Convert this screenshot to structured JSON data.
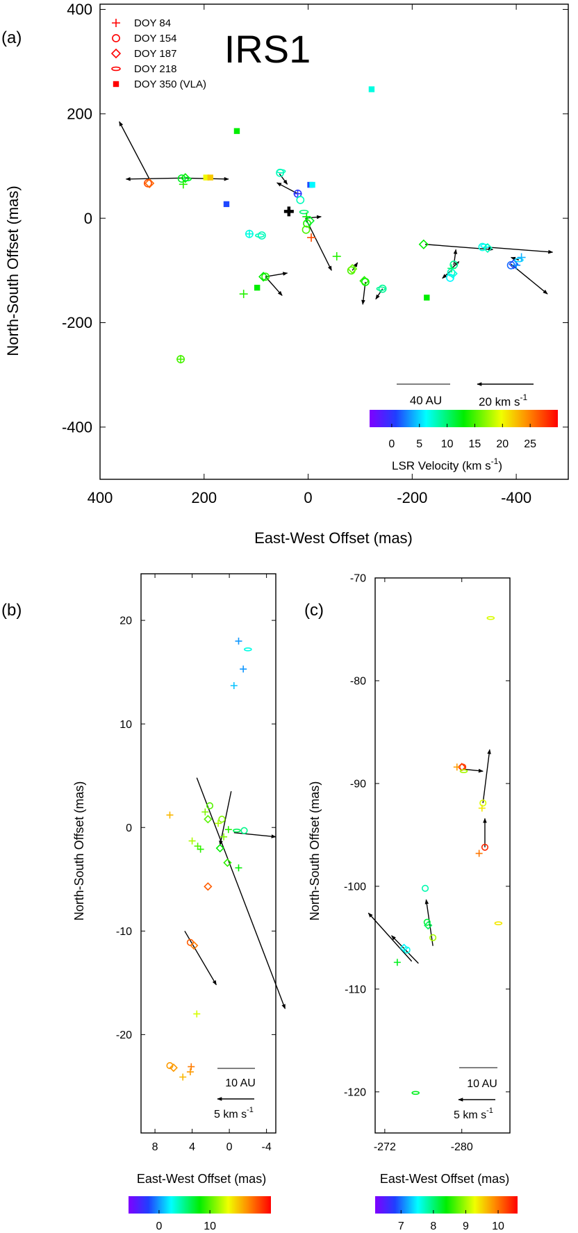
{
  "chart_data": [
    {
      "panel": "(a)",
      "type": "scatter",
      "title": "IRS1",
      "xlabel": "East-West Offset (mas)",
      "ylabel": "North-South Offset (mas)",
      "xlim": [
        400,
        -500
      ],
      "ylim": [
        -500,
        410
      ],
      "xticks": [
        400,
        200,
        0,
        -200,
        -400
      ],
      "xtick_labels": [
        "400",
        "200",
        "0",
        "-200",
        "-400"
      ],
      "yticks": [
        400,
        200,
        0,
        -200,
        -400
      ],
      "ytick_labels": [
        "400",
        "200",
        "0",
        "-200",
        "-400"
      ],
      "legend": {
        "position": "top-left",
        "entries": [
          {
            "label": "DOY 84",
            "marker": "plus",
            "color": "#ff0000"
          },
          {
            "label": "DOY 154",
            "marker": "circle",
            "color": "#ff0000"
          },
          {
            "label": "DOY 187",
            "marker": "diamond",
            "color": "#ff0000"
          },
          {
            "label": "DOY 218",
            "marker": "eye",
            "color": "#ff0000"
          },
          {
            "label": "DOY 350 (VLA)",
            "marker": "square",
            "color": "#ff0000"
          }
        ]
      },
      "scale_bar_label": "40 AU",
      "vector_scale_label": "20 km s",
      "vector_scale_sup": "-1",
      "colorbar": {
        "label": "LSR Velocity (km s",
        "label_sup": "-1",
        "label_close": ")",
        "vmin": -4,
        "vmax": 30,
        "ticks": [
          0,
          5,
          10,
          15,
          20,
          25
        ],
        "tick_labels": [
          "0",
          "5",
          "10",
          "15",
          "20",
          "25"
        ]
      },
      "origin_marker": {
        "x": 37,
        "y": 13
      },
      "points": [
        {
          "x": 308,
          "y": 67,
          "v": 27,
          "m": "circle"
        },
        {
          "x": 305,
          "y": 67,
          "v": 26,
          "m": "diamond"
        },
        {
          "x": 243,
          "y": 76,
          "v": 12,
          "m": "circle"
        },
        {
          "x": 236,
          "y": 77,
          "v": 13,
          "m": "diamond"
        },
        {
          "x": 240,
          "y": 65,
          "v": 14,
          "m": "plus"
        },
        {
          "x": 233,
          "y": 75,
          "v": 12,
          "m": "eye"
        },
        {
          "x": 196,
          "y": 78,
          "v": 20,
          "m": "square"
        },
        {
          "x": 188,
          "y": 78,
          "v": 22,
          "m": "square"
        },
        {
          "x": 157,
          "y": 27,
          "v": 1,
          "m": "square"
        },
        {
          "x": 137,
          "y": 167,
          "v": 13,
          "m": "square"
        },
        {
          "x": 113,
          "y": -30,
          "v": 7,
          "m": "circle"
        },
        {
          "x": 113,
          "y": -30,
          "v": 7,
          "m": "plus"
        },
        {
          "x": 89,
          "y": -33,
          "v": 8,
          "m": "circle"
        },
        {
          "x": 93,
          "y": -33,
          "v": 8,
          "m": "eye"
        },
        {
          "x": 82,
          "y": -112,
          "v": 14,
          "m": "circle"
        },
        {
          "x": 86,
          "y": -112,
          "v": 13,
          "m": "diamond"
        },
        {
          "x": 124,
          "y": -145,
          "v": 14,
          "m": "plus"
        },
        {
          "x": 98,
          "y": -133,
          "v": 13,
          "m": "square"
        },
        {
          "x": 245,
          "y": -270,
          "v": 15,
          "m": "circle"
        },
        {
          "x": 245,
          "y": -270,
          "v": 15,
          "m": "plus"
        },
        {
          "x": 54,
          "y": 87,
          "v": 8,
          "m": "circle"
        },
        {
          "x": 52,
          "y": 90,
          "v": 8,
          "m": "eye"
        },
        {
          "x": 20,
          "y": 47,
          "v": 0,
          "m": "circle"
        },
        {
          "x": 20,
          "y": 47,
          "v": 0,
          "m": "plus"
        },
        {
          "x": 15,
          "y": 35,
          "v": 8,
          "m": "circle"
        },
        {
          "x": 8,
          "y": 12,
          "v": 10,
          "m": "eye"
        },
        {
          "x": 3,
          "y": 3,
          "v": 13,
          "m": "plus"
        },
        {
          "x": 2,
          "y": -10,
          "v": 14,
          "m": "circle"
        },
        {
          "x": 4,
          "y": -22,
          "v": 15,
          "m": "circle"
        },
        {
          "x": -3,
          "y": -5,
          "v": 12,
          "m": "diamond"
        },
        {
          "x": -6,
          "y": -37,
          "v": 27,
          "m": "plus"
        },
        {
          "x": -4,
          "y": 64,
          "v": 1,
          "m": "square"
        },
        {
          "x": -8,
          "y": 64,
          "v": 6,
          "m": "square"
        },
        {
          "x": -55,
          "y": -73,
          "v": 14,
          "m": "plus"
        },
        {
          "x": -83,
          "y": -100,
          "v": 15,
          "m": "circle"
        },
        {
          "x": -85,
          "y": -97,
          "v": 16,
          "m": "diamond"
        },
        {
          "x": -110,
          "y": -122,
          "v": 13,
          "m": "circle"
        },
        {
          "x": -108,
          "y": -120,
          "v": 14,
          "m": "diamond"
        },
        {
          "x": -143,
          "y": -135,
          "v": 9,
          "m": "circle"
        },
        {
          "x": -140,
          "y": -135,
          "v": 9,
          "m": "eye"
        },
        {
          "x": -122,
          "y": 247,
          "v": 7,
          "m": "square"
        },
        {
          "x": -222,
          "y": -50,
          "v": 13,
          "m": "diamond"
        },
        {
          "x": -228,
          "y": -152,
          "v": 13,
          "m": "square"
        },
        {
          "x": -275,
          "y": -104,
          "v": 8,
          "m": "circle"
        },
        {
          "x": -278,
          "y": -106,
          "v": 7,
          "m": "diamond"
        },
        {
          "x": -280,
          "y": -89,
          "v": 9,
          "m": "circle"
        },
        {
          "x": -276,
          "y": -96,
          "v": 10,
          "m": "plus"
        },
        {
          "x": -273,
          "y": -114,
          "v": 6,
          "m": "circle"
        },
        {
          "x": -335,
          "y": -55,
          "v": 7,
          "m": "circle"
        },
        {
          "x": -340,
          "y": -53,
          "v": 6,
          "m": "eye"
        },
        {
          "x": -345,
          "y": -57,
          "v": 8,
          "m": "diamond"
        },
        {
          "x": -390,
          "y": -90,
          "v": 2,
          "m": "circle"
        },
        {
          "x": -395,
          "y": -88,
          "v": 1,
          "m": "diamond"
        },
        {
          "x": -400,
          "y": -90,
          "v": 3,
          "m": "plus"
        },
        {
          "x": -405,
          "y": -80,
          "v": 5,
          "m": "eye"
        },
        {
          "x": -410,
          "y": -75,
          "v": 4,
          "m": "plus"
        }
      ],
      "vectors": [
        {
          "x0": 305,
          "y0": 75,
          "x1": 363,
          "y1": 185
        },
        {
          "x0": 240,
          "y0": 77,
          "x1": 350,
          "y1": 75
        },
        {
          "x0": 240,
          "y0": 77,
          "x1": 153,
          "y1": 75
        },
        {
          "x0": 82,
          "y0": -112,
          "x1": 40,
          "y1": -105
        },
        {
          "x0": 82,
          "y0": -112,
          "x1": 50,
          "y1": -148
        },
        {
          "x0": 55,
          "y0": 85,
          "x1": 40,
          "y1": 65
        },
        {
          "x0": 20,
          "y0": 47,
          "x1": 60,
          "y1": 68
        },
        {
          "x0": 5,
          "y0": 0,
          "x1": -45,
          "y1": -100
        },
        {
          "x0": 5,
          "y0": 0,
          "x1": -25,
          "y1": 3
        },
        {
          "x0": -85,
          "y0": -100,
          "x1": -95,
          "y1": -85
        },
        {
          "x0": -110,
          "y0": -122,
          "x1": -105,
          "y1": -165
        },
        {
          "x0": -143,
          "y0": -135,
          "x1": -130,
          "y1": -155
        },
        {
          "x0": -225,
          "y0": -50,
          "x1": -355,
          "y1": -60
        },
        {
          "x0": -275,
          "y0": -100,
          "x1": -258,
          "y1": -115
        },
        {
          "x0": -280,
          "y0": -90,
          "x1": -284,
          "y1": -60
        },
        {
          "x0": -276,
          "y0": -96,
          "x1": -290,
          "y1": -83
        },
        {
          "x0": -340,
          "y0": -55,
          "x1": -470,
          "y1": -65
        },
        {
          "x0": -390,
          "y0": -88,
          "x1": -460,
          "y1": -145
        },
        {
          "x0": -405,
          "y0": -80,
          "x1": -390,
          "y1": -75
        }
      ]
    },
    {
      "panel": "(b)",
      "type": "scatter",
      "xlabel": "East-West Offset (mas)",
      "ylabel": "North-South Offset (mas)",
      "xlim": [
        9.5,
        -5
      ],
      "ylim": [
        -29.5,
        24.5
      ],
      "xticks": [
        8,
        4,
        0,
        -4
      ],
      "xtick_labels": [
        "8",
        "4",
        "0",
        "-4"
      ],
      "yticks": [
        20,
        10,
        0,
        -10,
        -20
      ],
      "ytick_labels": [
        "20",
        "10",
        "0",
        "-10",
        "-20"
      ],
      "scale_bar_label": "10 AU",
      "vector_scale_label": "5 km s",
      "vector_scale_sup": "-1",
      "colorbar": {
        "vmin": -6,
        "vmax": 22,
        "ticks": [
          0,
          10
        ],
        "tick_labels": [
          "0",
          "10"
        ]
      },
      "points": [
        {
          "x": -1,
          "y": 18,
          "v": 0,
          "m": "plus"
        },
        {
          "x": -2,
          "y": 17.2,
          "v": 3,
          "m": "eye"
        },
        {
          "x": -1.5,
          "y": 15.3,
          "v": 0,
          "m": "plus"
        },
        {
          "x": -0.5,
          "y": 13.7,
          "v": 1,
          "m": "plus"
        },
        {
          "x": 6.4,
          "y": 1.2,
          "v": 16,
          "m": "plus"
        },
        {
          "x": 2.1,
          "y": 2.1,
          "v": 10,
          "m": "circle"
        },
        {
          "x": 2.6,
          "y": 1.5,
          "v": 11,
          "m": "plus"
        },
        {
          "x": 2.3,
          "y": 0.8,
          "v": 10,
          "m": "diamond"
        },
        {
          "x": 0.8,
          "y": 0.8,
          "v": 11,
          "m": "circle"
        },
        {
          "x": 1.2,
          "y": 0.4,
          "v": 12,
          "m": "plus"
        },
        {
          "x": -1.6,
          "y": -0.3,
          "v": 5,
          "m": "circle"
        },
        {
          "x": -0.8,
          "y": -0.3,
          "v": 6,
          "m": "eye"
        },
        {
          "x": 0.1,
          "y": -0.2,
          "v": 9,
          "m": "plus"
        },
        {
          "x": 0.6,
          "y": -0.9,
          "v": 11,
          "m": "plus"
        },
        {
          "x": 4.0,
          "y": -1.3,
          "v": 12,
          "m": "plus"
        },
        {
          "x": 3.4,
          "y": -1.8,
          "v": 10,
          "m": "plus"
        },
        {
          "x": 3.1,
          "y": -2.1,
          "v": 9,
          "m": "plus"
        },
        {
          "x": 1.0,
          "y": -2.0,
          "v": 8,
          "m": "diamond"
        },
        {
          "x": 0.2,
          "y": -3.4,
          "v": 9,
          "m": "diamond"
        },
        {
          "x": -1.0,
          "y": -3.9,
          "v": 8,
          "m": "plus"
        },
        {
          "x": 2.3,
          "y": -5.7,
          "v": 19,
          "m": "diamond"
        },
        {
          "x": 4.2,
          "y": -11.1,
          "v": 19,
          "m": "circle"
        },
        {
          "x": 3.8,
          "y": -11.4,
          "v": 18,
          "m": "diamond"
        },
        {
          "x": 3.5,
          "y": -18,
          "v": 13,
          "m": "plus"
        },
        {
          "x": 6.4,
          "y": -23,
          "v": 17,
          "m": "circle"
        },
        {
          "x": 6.0,
          "y": -23.2,
          "v": 17,
          "m": "diamond"
        },
        {
          "x": 4.1,
          "y": -23.1,
          "v": 18,
          "m": "plus"
        },
        {
          "x": 4.2,
          "y": -23.6,
          "v": 17,
          "m": "plus"
        },
        {
          "x": 5.0,
          "y": -24.1,
          "v": 16,
          "m": "plus"
        }
      ],
      "vectors": [
        {
          "x0": 3.5,
          "y0": 4.8,
          "x1": -6.0,
          "y1": -17.5
        },
        {
          "x0": -0.2,
          "y0": 3.5,
          "x1": 1.0,
          "y1": -1.7
        },
        {
          "x0": -0.5,
          "y0": -0.5,
          "x1": -5.0,
          "y1": -0.9
        },
        {
          "x0": 4.8,
          "y0": -10.0,
          "x1": 1.4,
          "y1": -15.2
        }
      ]
    },
    {
      "panel": "(c)",
      "type": "scatter",
      "xlabel": "East-West Offset (mas)",
      "ylabel": "North-South Offset (mas)",
      "xlim": [
        -271,
        -285
      ],
      "ylim": [
        -124,
        -70
      ],
      "xticks": [
        -272,
        -280
      ],
      "xtick_labels": [
        "-272",
        "-280"
      ],
      "yticks": [
        -70,
        -80,
        -90,
        -100,
        -110,
        -120
      ],
      "ytick_labels": [
        "-70",
        "-80",
        "-90",
        "-100",
        "-110",
        "-120"
      ],
      "scale_bar_label": "10 AU",
      "vector_scale_label": "5 km s",
      "vector_scale_sup": "-1",
      "colorbar": {
        "vmin": 6.2,
        "vmax": 10.6,
        "ticks": [
          7,
          8,
          9,
          10
        ],
        "tick_labels": [
          "7",
          "8",
          "9",
          "10"
        ]
      },
      "points": [
        {
          "x": -283.0,
          "y": -73.9,
          "v": 9.2,
          "m": "eye"
        },
        {
          "x": -280.1,
          "y": -88.4,
          "v": 10.3,
          "m": "circle"
        },
        {
          "x": -280.0,
          "y": -88.4,
          "v": 10.3,
          "m": "diamond"
        },
        {
          "x": -279.5,
          "y": -88.4,
          "v": 9.8,
          "m": "plus"
        },
        {
          "x": -280.2,
          "y": -88.8,
          "v": 9.0,
          "m": "eye"
        },
        {
          "x": -282.2,
          "y": -91.9,
          "v": 9.2,
          "m": "circle"
        },
        {
          "x": -282.1,
          "y": -92.4,
          "v": 9.4,
          "m": "plus"
        },
        {
          "x": -282.4,
          "y": -96.2,
          "v": 10.4,
          "m": "circle"
        },
        {
          "x": -281.8,
          "y": -96.8,
          "v": 10.0,
          "m": "plus"
        },
        {
          "x": -283.8,
          "y": -103.6,
          "v": 9.4,
          "m": "eye"
        },
        {
          "x": -276.2,
          "y": -100.2,
          "v": 7.8,
          "m": "circle"
        },
        {
          "x": -276.4,
          "y": -103.5,
          "v": 8.2,
          "m": "circle"
        },
        {
          "x": -276.5,
          "y": -103.8,
          "v": 8.1,
          "m": "diamond"
        },
        {
          "x": -277.0,
          "y": -105.0,
          "v": 9.0,
          "m": "circle"
        },
        {
          "x": -274.3,
          "y": -106.2,
          "v": 7.6,
          "m": "circle"
        },
        {
          "x": -274.0,
          "y": -106.0,
          "v": 7.5,
          "m": "diamond"
        },
        {
          "x": -273.3,
          "y": -107.4,
          "v": 8.3,
          "m": "plus"
        },
        {
          "x": -275.2,
          "y": -120.1,
          "v": 8.3,
          "m": "eye"
        }
      ],
      "vectors": [
        {
          "x0": -280.1,
          "y0": -88.6,
          "x1": -282.2,
          "y1": -88.8
        },
        {
          "x0": -282.2,
          "y0": -91.9,
          "x1": -282.9,
          "y1": -86.7
        },
        {
          "x0": -282.4,
          "y0": -96.2,
          "x1": -282.4,
          "y1": -93.4
        },
        {
          "x0": -277.0,
          "y0": -105.8,
          "x1": -276.3,
          "y1": -101.3
        },
        {
          "x0": -274.8,
          "y0": -107.3,
          "x1": -270.3,
          "y1": -102.6
        },
        {
          "x0": -275.5,
          "y0": -107.5,
          "x1": -272.7,
          "y1": -104.8
        }
      ]
    }
  ]
}
